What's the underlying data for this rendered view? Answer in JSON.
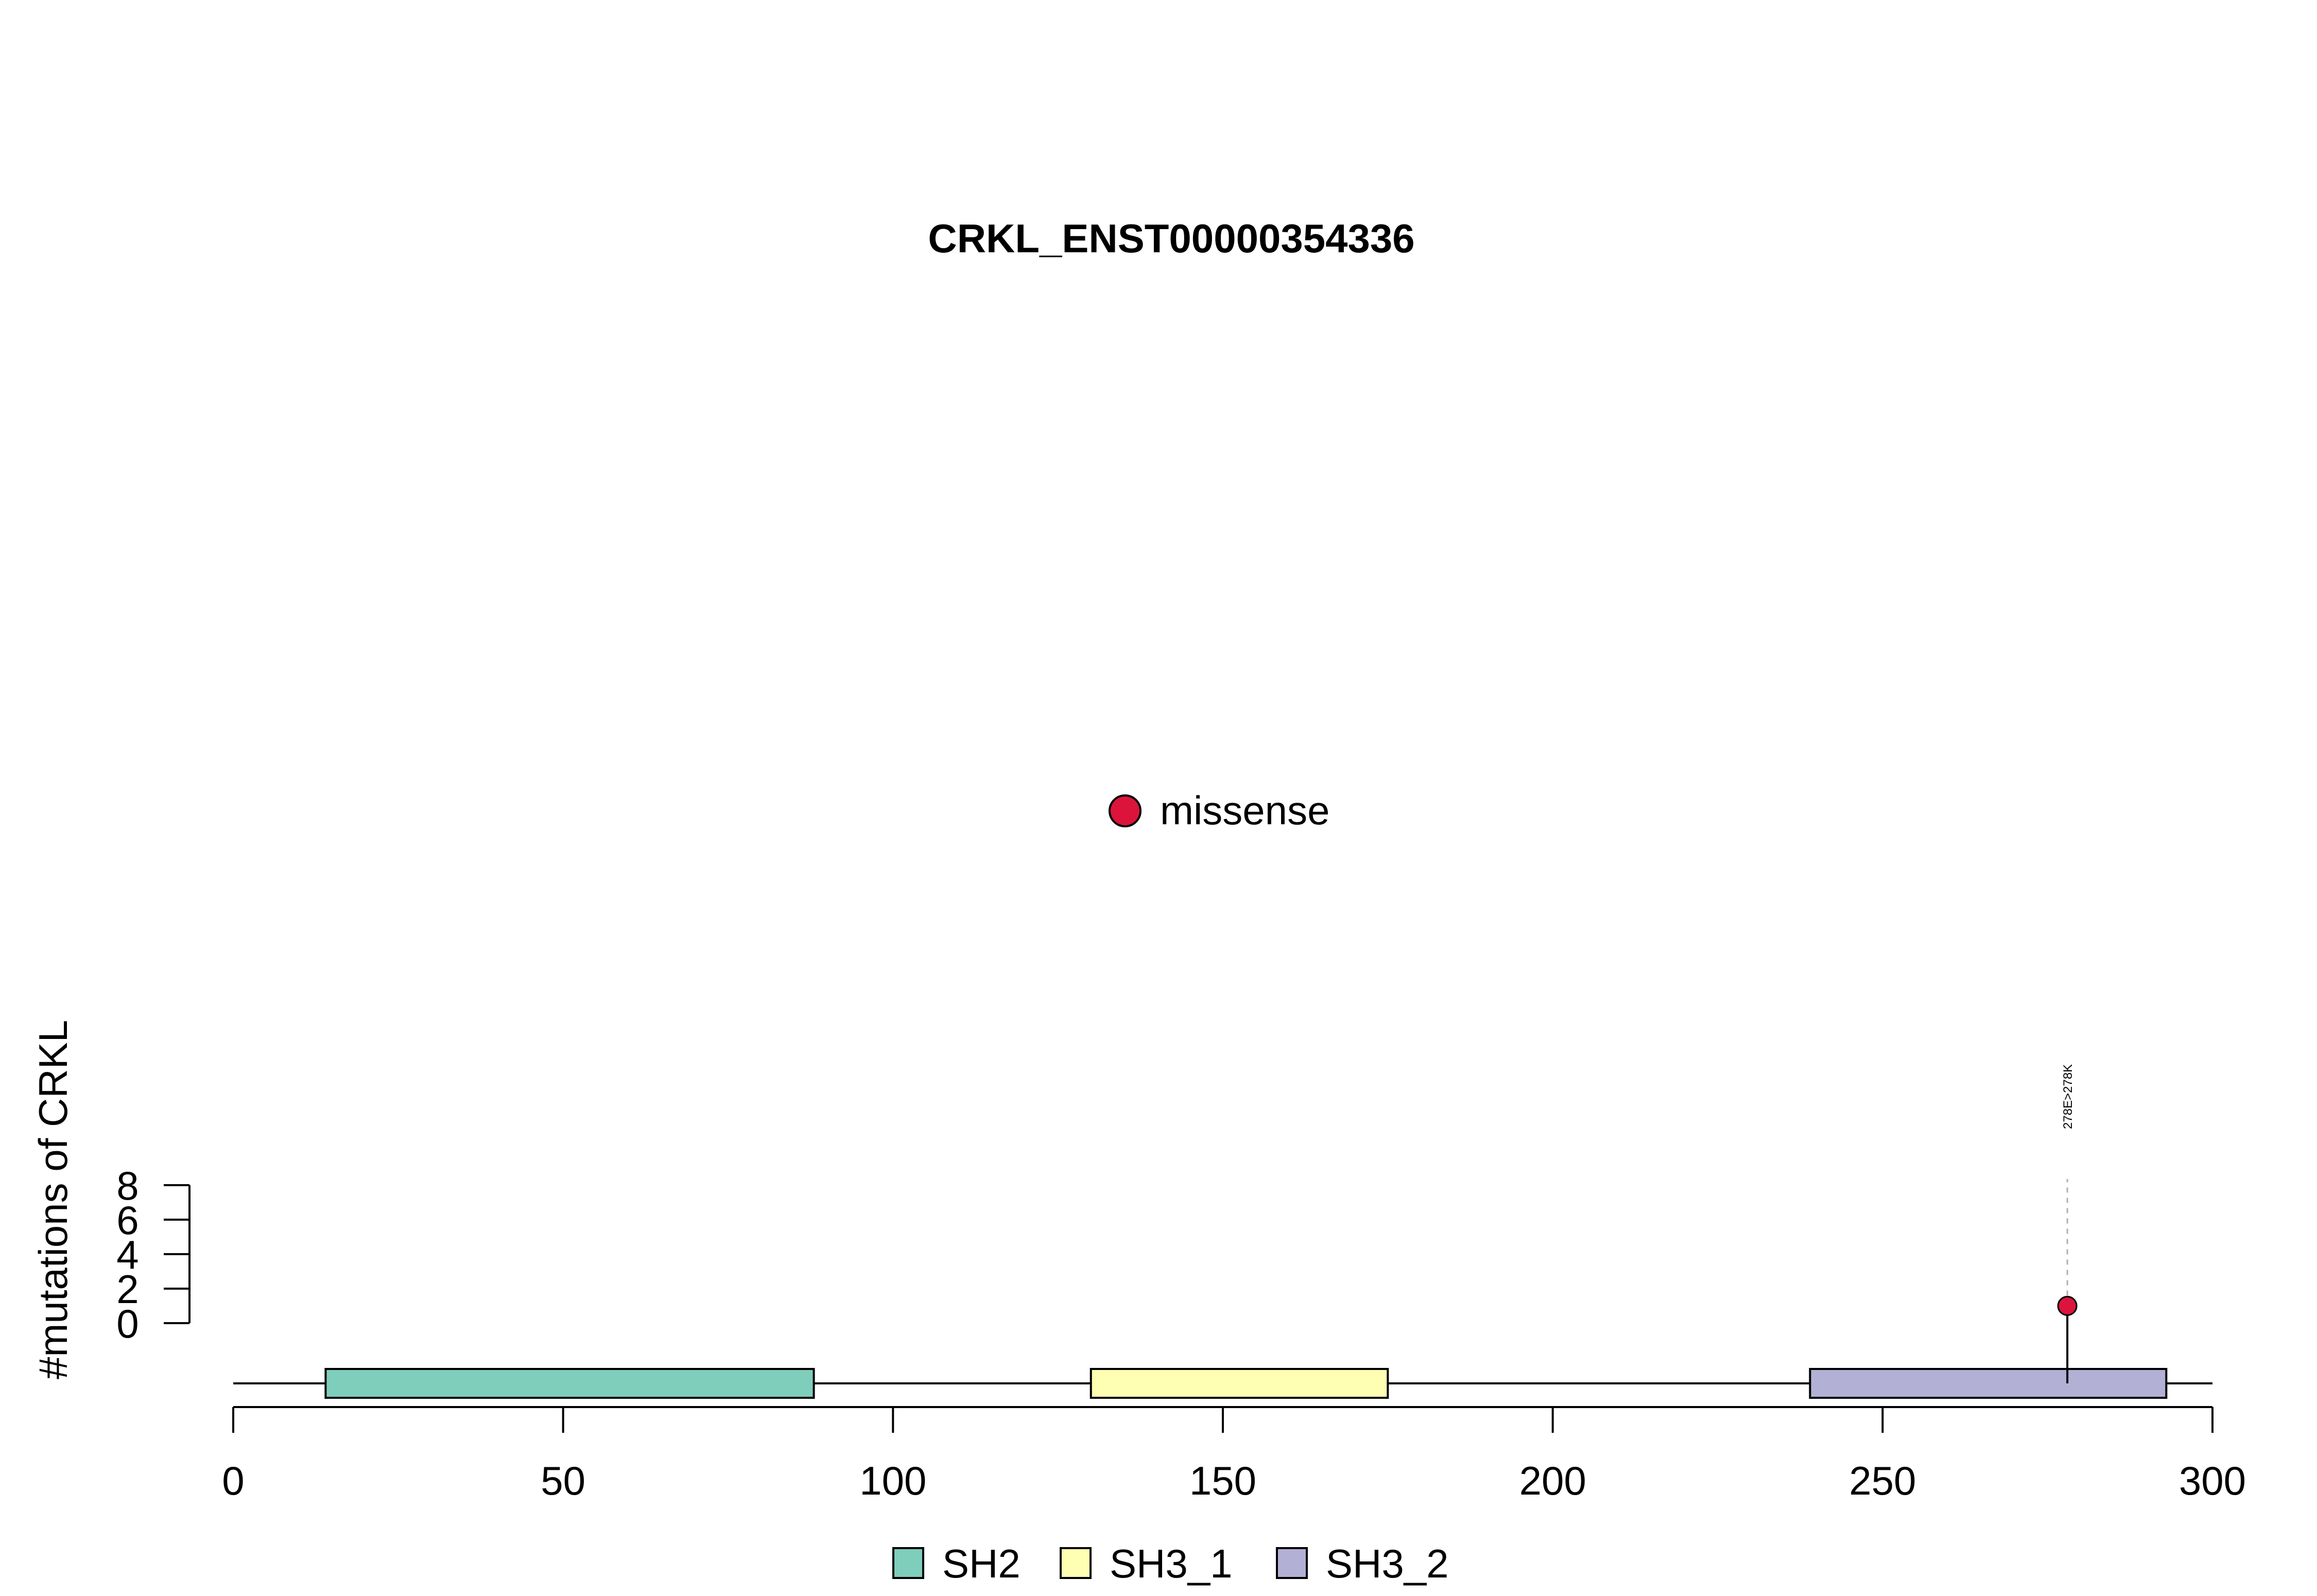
{
  "chart_data": {
    "type": "lollipop",
    "title": "CRKL_ENST00000354336",
    "ylabel": "#mutations of CRKL",
    "xlabel": "",
    "xlim": [
      0,
      300
    ],
    "x_ticks": [
      0,
      50,
      100,
      150,
      200,
      250,
      300
    ],
    "ylim": [
      0,
      8
    ],
    "y_ticks": [
      0,
      2,
      4,
      6,
      8
    ],
    "protein_length": 300,
    "domains": [
      {
        "name": "SH2",
        "start": 14,
        "end": 88,
        "color": "#7fcdbb"
      },
      {
        "name": "SH3_1",
        "start": 130,
        "end": 175,
        "color": "#ffffb3"
      },
      {
        "name": "SH3_2",
        "start": 239,
        "end": 293,
        "color": "#b3b0d6"
      }
    ],
    "mutations": [
      {
        "position": 278,
        "count": 1,
        "type": "missense",
        "label": "278E>278K",
        "color": "#dc143c"
      }
    ],
    "mutation_legend": [
      {
        "name": "missense",
        "color": "#dc143c"
      }
    ],
    "domain_legend": [
      {
        "name": "SH2",
        "color": "#7fcdbb"
      },
      {
        "name": "SH3_1",
        "color": "#ffffb3"
      },
      {
        "name": "SH3_2",
        "color": "#b3b0d6"
      }
    ],
    "legend_position": "bottom"
  }
}
